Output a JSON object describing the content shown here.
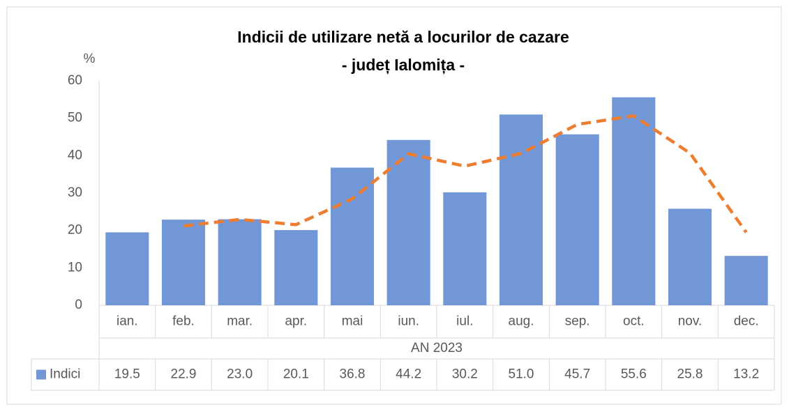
{
  "chart_data": {
    "type": "bar",
    "title": "Indicii de utilizare netă a locurilor de cazare",
    "subtitle": "- județ Ialomița -",
    "ylabel": "%",
    "xlabel": "AN 2023",
    "categories": [
      "ian.",
      "feb.",
      "mar.",
      "apr.",
      "mai",
      "iun.",
      "iul.",
      "aug.",
      "sep.",
      "oct.",
      "nov.",
      "dec."
    ],
    "series": [
      {
        "name": "Indici",
        "type": "bar",
        "color": "#7297d6",
        "values": [
          19.5,
          22.9,
          23.0,
          20.1,
          36.8,
          44.2,
          30.2,
          51.0,
          45.7,
          55.6,
          25.8,
          13.2
        ],
        "value_labels": [
          "19.5",
          "22.9",
          "23.0",
          "20.1",
          "36.8",
          "44.2",
          "30.2",
          "51.0",
          "45.7",
          "55.6",
          "25.8",
          "13.2"
        ]
      },
      {
        "type": "line",
        "color": "#ed7d31",
        "dashed": true,
        "values": [
          null,
          21.2,
          22.95,
          21.55,
          28.45,
          40.5,
          37.2,
          40.6,
          48.35,
          50.65,
          40.7,
          19.5
        ]
      }
    ],
    "ylim": [
      0,
      60
    ],
    "yticks": [
      0,
      10,
      20,
      30,
      40,
      50,
      60
    ],
    "grid": false
  }
}
